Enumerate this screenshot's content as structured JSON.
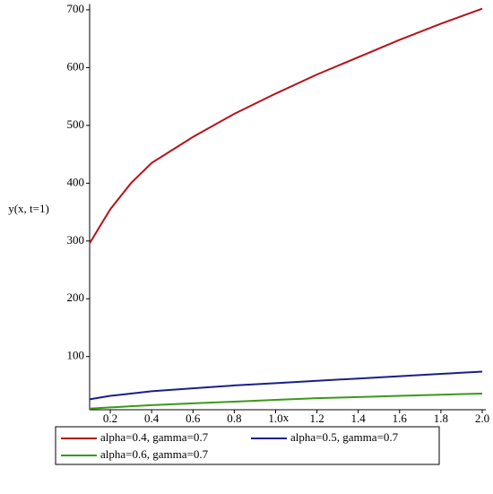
{
  "chart_data": {
    "type": "line",
    "x_label": "x",
    "y_label": "y(x, t=1)",
    "x": [
      0.1,
      0.2,
      0.3,
      0.4,
      0.6,
      0.8,
      1.0,
      1.2,
      1.4,
      1.6,
      1.8,
      2.0
    ],
    "series": [
      {
        "name": "alpha=0.4, gamma=0.7",
        "color": "#b5121b",
        "values": [
          296,
          355,
          400,
          435,
          480,
          520,
          555,
          588,
          618,
          648,
          676,
          702
        ]
      },
      {
        "name": "alpha=0.5, gamma=0.7",
        "color": "#1a1f8c",
        "values": [
          26,
          32,
          36,
          40,
          45,
          50,
          54,
          58,
          62,
          66,
          70,
          74
        ]
      },
      {
        "name": "alpha=0.6, gamma=0.7",
        "color": "#3a9a1a",
        "values": [
          10,
          12,
          14,
          16,
          19,
          22,
          25,
          28,
          30,
          32,
          34,
          36
        ]
      }
    ],
    "xlim": [
      0.1,
      2.0
    ],
    "ylim": [
      8,
      710
    ],
    "xticks": [
      0.2,
      0.4,
      0.6,
      0.8,
      {
        "value": 1.0,
        "label": "1.0"
      },
      1.2,
      1.4,
      1.6,
      1.8,
      {
        "value": 2.0,
        "label": "2.0"
      }
    ],
    "yticks": [
      100,
      200,
      300,
      400,
      500,
      600,
      700
    ],
    "grid": false
  }
}
